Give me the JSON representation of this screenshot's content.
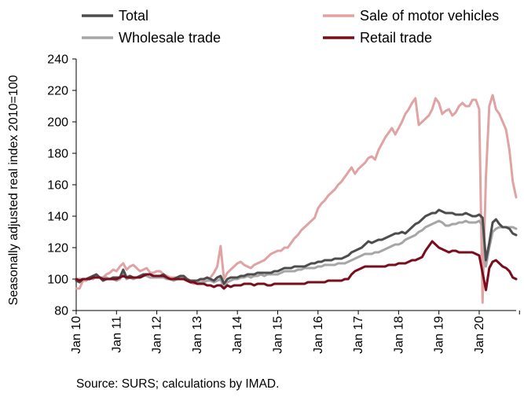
{
  "chart_data": {
    "type": "line",
    "ylabel": "Seasonally adjusted real index 2010=100",
    "xlabel": "",
    "ylim": [
      80,
      240
    ],
    "yticks": [
      80,
      100,
      120,
      140,
      160,
      180,
      200,
      220,
      240
    ],
    "x_start": "2010-01",
    "x_end": "2020-12",
    "xtick_labels": [
      "Jan 10",
      "Jan 11",
      "Jan 12",
      "Jan 13",
      "Jan 14",
      "Jan 15",
      "Jan 16",
      "Jan 17",
      "Jan 18",
      "Jan 19",
      "Jan 20"
    ],
    "grid": "none",
    "legend_position": "top",
    "series": [
      {
        "name": "Total",
        "color": "#4d4d4d",
        "values": [
          99,
          98,
          100,
          100,
          101,
          102,
          103,
          101,
          99,
          100,
          100,
          101,
          101,
          101,
          106,
          101,
          102,
          101,
          101,
          102,
          103,
          103,
          103,
          102,
          102,
          102,
          103,
          101,
          100,
          100,
          101,
          102,
          102,
          100,
          99,
          99,
          99,
          100,
          100,
          101,
          100,
          99,
          101,
          102,
          97,
          100,
          101,
          101,
          101,
          102,
          102,
          103,
          103,
          103,
          104,
          104,
          104,
          104,
          104,
          105,
          105,
          106,
          107,
          107,
          107,
          108,
          108,
          108,
          108,
          109,
          110,
          110,
          111,
          111,
          112,
          112,
          112,
          113,
          113,
          113,
          114,
          115,
          117,
          118,
          119,
          120,
          122,
          124,
          123,
          124,
          125,
          125,
          126,
          127,
          128,
          129,
          129,
          130,
          129,
          131,
          133,
          135,
          136,
          138,
          140,
          141,
          142,
          142,
          144,
          143,
          142,
          142,
          142,
          141,
          141,
          141,
          142,
          141,
          140,
          140,
          141,
          139,
          112,
          123,
          136,
          138,
          135,
          133,
          133,
          132,
          129,
          128
        ]
      },
      {
        "name": "Sale of motor vehicles",
        "color": "#e0a3a3",
        "values": [
          94,
          94,
          99,
          99,
          101,
          102,
          101,
          101,
          101,
          103,
          104,
          106,
          105,
          108,
          110,
          106,
          108,
          109,
          107,
          105,
          106,
          107,
          104,
          104,
          105,
          105,
          103,
          102,
          101,
          101,
          101,
          101,
          100,
          99,
          98,
          97,
          98,
          100,
          99,
          99,
          101,
          104,
          108,
          121,
          100,
          104,
          106,
          108,
          110,
          111,
          109,
          108,
          107,
          109,
          110,
          111,
          112,
          114,
          116,
          117,
          118,
          118,
          120,
          120,
          123,
          126,
          128,
          131,
          133,
          135,
          137,
          139,
          145,
          148,
          150,
          153,
          155,
          157,
          160,
          162,
          165,
          168,
          171,
          167,
          170,
          172,
          174,
          177,
          178,
          176,
          182,
          186,
          190,
          193,
          196,
          192,
          196,
          200,
          205,
          208,
          212,
          215,
          198,
          200,
          202,
          204,
          208,
          215,
          212,
          205,
          207,
          208,
          204,
          206,
          210,
          212,
          210,
          210,
          214,
          214,
          208,
          85,
          165,
          210,
          217,
          208,
          205,
          200,
          195,
          182,
          162,
          152
        ]
      },
      {
        "name": "Wholesale trade",
        "color": "#a6a6a6",
        "values": [
          100,
          100,
          100,
          100,
          101,
          100,
          102,
          101,
          101,
          101,
          100,
          100,
          99,
          100,
          104,
          100,
          101,
          100,
          101,
          101,
          103,
          102,
          101,
          101,
          101,
          101,
          101,
          100,
          100,
          99,
          100,
          101,
          101,
          99,
          98,
          98,
          98,
          98,
          98,
          99,
          99,
          98,
          99,
          100,
          94,
          98,
          99,
          100,
          100,
          101,
          101,
          102,
          101,
          102,
          102,
          103,
          102,
          103,
          103,
          103,
          103,
          104,
          105,
          105,
          105,
          105,
          106,
          106,
          107,
          107,
          107,
          107,
          108,
          108,
          109,
          109,
          109,
          109,
          110,
          110,
          110,
          111,
          112,
          113,
          114,
          115,
          116,
          116,
          116,
          117,
          117,
          118,
          119,
          120,
          121,
          122,
          122,
          123,
          125,
          126,
          127,
          128,
          130,
          131,
          133,
          134,
          135,
          136,
          137,
          136,
          134,
          134,
          135,
          135,
          136,
          136,
          137,
          136,
          136,
          136,
          137,
          134,
          108,
          120,
          130,
          132,
          133,
          133,
          133,
          133,
          133,
          132
        ]
      },
      {
        "name": "Retail trade",
        "color": "#7a0c1c",
        "values": [
          100,
          99,
          100,
          100,
          100,
          101,
          101,
          101,
          100,
          100,
          100,
          100,
          100,
          101,
          102,
          101,
          101,
          101,
          101,
          101,
          102,
          103,
          103,
          102,
          102,
          102,
          102,
          101,
          100,
          100,
          100,
          100,
          100,
          99,
          98,
          98,
          97,
          97,
          97,
          96,
          96,
          95,
          96,
          96,
          94,
          96,
          95,
          96,
          96,
          96,
          97,
          97,
          97,
          96,
          97,
          97,
          97,
          96,
          96,
          97,
          97,
          97,
          97,
          97,
          97,
          97,
          97,
          97,
          97,
          98,
          98,
          98,
          98,
          98,
          98,
          99,
          99,
          99,
          99,
          99,
          100,
          100,
          103,
          105,
          106,
          107,
          108,
          108,
          108,
          108,
          108,
          108,
          108,
          109,
          109,
          109,
          110,
          110,
          110,
          111,
          112,
          112,
          113,
          114,
          118,
          121,
          124,
          122,
          120,
          119,
          118,
          117,
          118,
          118,
          117,
          117,
          117,
          117,
          117,
          116,
          115,
          104,
          93,
          107,
          111,
          112,
          110,
          108,
          107,
          105,
          101,
          100
        ]
      }
    ]
  },
  "source_text": "Source: SURS; calculations by IMAD."
}
